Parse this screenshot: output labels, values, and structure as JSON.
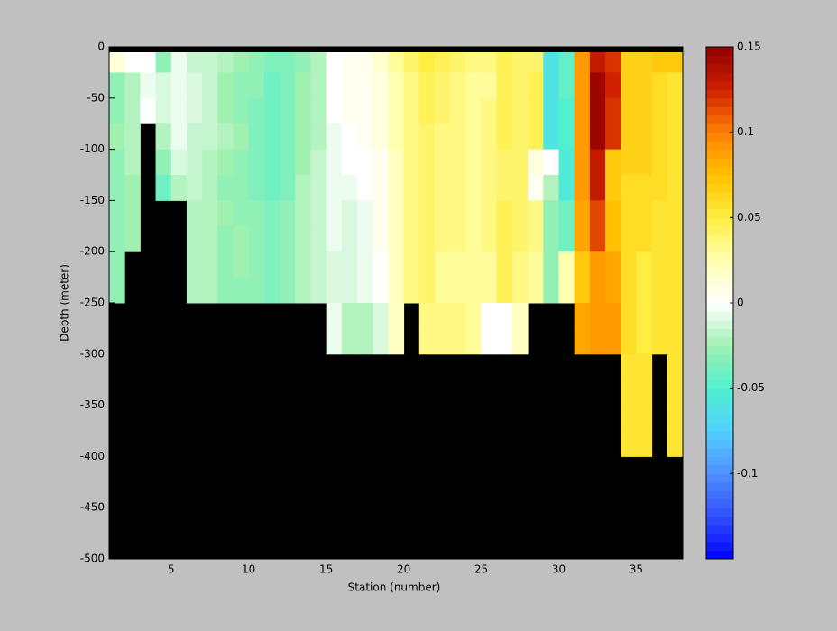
{
  "chart_data": {
    "type": "heatmap",
    "x_label": "Station (number)",
    "y_label": "Depth (meter)",
    "x": [
      1,
      2,
      3,
      4,
      5,
      6,
      7,
      8,
      9,
      10,
      11,
      12,
      13,
      14,
      15,
      16,
      17,
      18,
      19,
      20,
      21,
      22,
      23,
      24,
      25,
      26,
      27,
      28,
      29,
      30,
      31,
      32,
      33,
      34,
      35,
      36,
      37,
      38
    ],
    "y": [
      0,
      -25,
      -50,
      -75,
      -100,
      -125,
      -150,
      -175,
      -200,
      -225,
      -250,
      -275,
      -300,
      -325,
      -350,
      -375,
      -400
    ],
    "values": [
      [
        0.012,
        0.0,
        0.0,
        -0.03,
        -0.005,
        -0.015,
        -0.015,
        -0.02,
        -0.025,
        -0.03,
        -0.035,
        -0.035,
        -0.03,
        -0.02,
        0.0,
        0.005,
        0.005,
        0.015,
        0.03,
        0.04,
        0.05,
        0.045,
        0.04,
        0.035,
        0.035,
        0.045,
        0.04,
        0.04,
        -0.06,
        -0.045,
        0.09,
        0.13,
        0.12,
        0.065,
        0.065,
        0.07,
        0.07
      ],
      [
        -0.03,
        -0.02,
        -0.005,
        -0.01,
        -0.005,
        -0.01,
        -0.015,
        -0.025,
        -0.03,
        -0.03,
        -0.04,
        -0.035,
        -0.025,
        -0.02,
        0.0,
        0.005,
        0.005,
        0.01,
        0.025,
        0.035,
        0.045,
        0.04,
        0.035,
        0.03,
        0.03,
        0.045,
        0.04,
        0.045,
        -0.06,
        -0.045,
        0.09,
        0.145,
        0.125,
        0.065,
        0.065,
        0.06,
        0.055
      ],
      [
        -0.03,
        -0.02,
        0.0,
        -0.01,
        -0.005,
        -0.01,
        -0.015,
        -0.025,
        -0.03,
        -0.035,
        -0.04,
        -0.035,
        -0.025,
        -0.02,
        0.0,
        0.005,
        0.005,
        0.01,
        0.025,
        0.035,
        0.045,
        0.04,
        0.035,
        0.03,
        0.035,
        0.045,
        0.04,
        0.045,
        -0.06,
        -0.05,
        0.09,
        0.145,
        0.12,
        0.065,
        0.065,
        0.06,
        0.055
      ],
      [
        -0.025,
        -0.02,
        null,
        -0.02,
        -0.005,
        -0.015,
        -0.015,
        -0.02,
        -0.025,
        -0.035,
        -0.04,
        -0.035,
        -0.025,
        -0.02,
        -0.005,
        0.0,
        0.005,
        0.01,
        0.025,
        0.035,
        0.04,
        0.035,
        0.035,
        0.03,
        0.035,
        0.045,
        0.04,
        0.045,
        -0.06,
        -0.05,
        0.09,
        0.145,
        0.12,
        0.065,
        0.065,
        0.06,
        0.055
      ],
      [
        -0.03,
        -0.02,
        null,
        -0.03,
        -0.01,
        -0.015,
        -0.02,
        -0.025,
        -0.03,
        -0.035,
        -0.04,
        -0.035,
        -0.025,
        -0.015,
        -0.005,
        0.0,
        0.0,
        0.005,
        0.02,
        0.035,
        0.04,
        0.035,
        0.035,
        0.03,
        0.035,
        0.04,
        0.04,
        0.01,
        0.0,
        -0.055,
        0.09,
        0.13,
        0.07,
        0.065,
        0.065,
        0.06,
        0.055
      ],
      [
        -0.03,
        -0.025,
        null,
        -0.04,
        -0.02,
        -0.015,
        -0.02,
        -0.03,
        -0.03,
        -0.035,
        -0.04,
        -0.035,
        -0.02,
        -0.015,
        -0.005,
        -0.005,
        0.0,
        0.005,
        0.02,
        0.035,
        0.04,
        0.035,
        0.035,
        0.03,
        0.035,
        0.04,
        0.04,
        0.005,
        -0.02,
        -0.055,
        0.09,
        0.13,
        0.07,
        0.06,
        0.06,
        0.06,
        0.055
      ],
      [
        -0.03,
        -0.025,
        null,
        null,
        null,
        -0.02,
        -0.02,
        -0.025,
        -0.03,
        -0.03,
        -0.035,
        -0.03,
        -0.02,
        -0.015,
        -0.005,
        -0.01,
        -0.005,
        0.005,
        0.02,
        0.035,
        0.04,
        0.035,
        0.035,
        0.03,
        0.035,
        0.045,
        0.04,
        0.035,
        -0.03,
        -0.04,
        0.085,
        0.115,
        0.075,
        0.06,
        0.06,
        0.055,
        0.055
      ],
      [
        -0.03,
        -0.025,
        null,
        null,
        null,
        -0.02,
        -0.02,
        -0.03,
        -0.025,
        -0.03,
        -0.035,
        -0.03,
        -0.02,
        -0.015,
        -0.005,
        -0.01,
        -0.005,
        0.005,
        0.02,
        0.035,
        0.04,
        0.035,
        0.035,
        0.03,
        0.035,
        0.045,
        0.04,
        0.035,
        -0.03,
        -0.04,
        0.085,
        0.115,
        0.075,
        0.06,
        0.06,
        0.055,
        0.055
      ],
      [
        -0.03,
        null,
        null,
        null,
        null,
        -0.02,
        -0.02,
        -0.03,
        -0.025,
        -0.03,
        -0.035,
        -0.03,
        -0.02,
        -0.015,
        -0.01,
        -0.01,
        -0.005,
        0.0,
        0.02,
        0.035,
        0.04,
        0.03,
        0.03,
        0.03,
        0.03,
        0.045,
        0.035,
        0.03,
        -0.03,
        0.025,
        0.07,
        0.09,
        0.085,
        0.06,
        0.05,
        0.055,
        0.055
      ],
      [
        -0.03,
        null,
        null,
        null,
        null,
        -0.02,
        -0.02,
        -0.03,
        -0.03,
        -0.03,
        -0.035,
        -0.03,
        -0.02,
        -0.015,
        -0.01,
        -0.01,
        -0.005,
        0.0,
        0.02,
        0.035,
        0.04,
        0.03,
        0.03,
        0.03,
        0.03,
        0.045,
        0.035,
        0.03,
        -0.03,
        0.025,
        0.07,
        0.09,
        0.085,
        0.06,
        0.05,
        0.055,
        0.055
      ],
      [
        null,
        null,
        null,
        null,
        null,
        null,
        null,
        null,
        null,
        null,
        null,
        null,
        null,
        null,
        -0.005,
        -0.02,
        -0.02,
        -0.01,
        0.02,
        null,
        0.035,
        0.035,
        0.035,
        0.03,
        0.0,
        0.0,
        0.02,
        null,
        null,
        null,
        0.085,
        0.09,
        0.09,
        0.06,
        0.05,
        0.055,
        0.055
      ],
      [
        null,
        null,
        null,
        null,
        null,
        null,
        null,
        null,
        null,
        null,
        null,
        null,
        null,
        null,
        -0.005,
        -0.02,
        -0.02,
        -0.01,
        0.02,
        null,
        0.035,
        0.035,
        0.035,
        0.03,
        0.0,
        0.0,
        0.02,
        null,
        null,
        null,
        0.085,
        0.09,
        0.09,
        0.06,
        0.05,
        0.055,
        0.055
      ],
      [
        null,
        null,
        null,
        null,
        null,
        null,
        null,
        null,
        null,
        null,
        null,
        null,
        null,
        null,
        null,
        null,
        null,
        null,
        null,
        null,
        null,
        null,
        null,
        null,
        null,
        null,
        null,
        null,
        null,
        null,
        null,
        null,
        null,
        0.055,
        0.055,
        null,
        0.055
      ],
      [
        null,
        null,
        null,
        null,
        null,
        null,
        null,
        null,
        null,
        null,
        null,
        null,
        null,
        null,
        null,
        null,
        null,
        null,
        null,
        null,
        null,
        null,
        null,
        null,
        null,
        null,
        null,
        null,
        null,
        null,
        null,
        null,
        null,
        0.055,
        0.055,
        null,
        0.055
      ],
      [
        null,
        null,
        null,
        null,
        null,
        null,
        null,
        null,
        null,
        null,
        null,
        null,
        null,
        null,
        null,
        null,
        null,
        null,
        null,
        null,
        null,
        null,
        null,
        null,
        null,
        null,
        null,
        null,
        null,
        null,
        null,
        null,
        null,
        0.055,
        0.055,
        null,
        0.055
      ],
      [
        null,
        null,
        null,
        null,
        null,
        null,
        null,
        null,
        null,
        null,
        null,
        null,
        null,
        null,
        null,
        null,
        null,
        null,
        null,
        null,
        null,
        null,
        null,
        null,
        null,
        null,
        null,
        null,
        null,
        null,
        null,
        null,
        null,
        0.055,
        0.055,
        null,
        0.055
      ]
    ],
    "xlim": [
      1,
      38
    ],
    "xticks": [
      5,
      10,
      15,
      20,
      25,
      30,
      35
    ],
    "ylim": [
      -500,
      0
    ],
    "yticks": [
      0,
      -50,
      -100,
      -150,
      -200,
      -250,
      -300,
      -350,
      -400,
      -450,
      -500
    ],
    "clim": [
      -0.15,
      0.15
    ],
    "cticks": [
      -0.1,
      -0.05,
      0,
      0.05,
      0.1,
      0.15
    ],
    "colormap": [
      "#0000ff",
      "#3050ff",
      "#5090ff",
      "#50d0ff",
      "#50f0d0",
      "#a0f0b0",
      "#ffffff",
      "#ffffb0",
      "#ffee40",
      "#ffc000",
      "#ff8000",
      "#d02000",
      "#900000"
    ],
    "missing_color": "#000000"
  }
}
